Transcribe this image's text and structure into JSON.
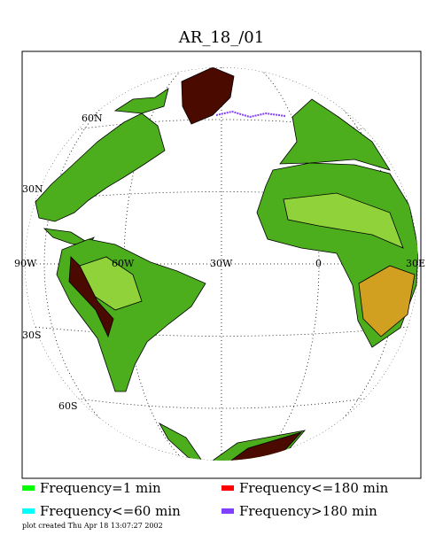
{
  "header": {
    "title": "AR_18_/01"
  },
  "map": {
    "grid_labels": [
      "60N",
      "30N",
      "90W",
      "60W",
      "30W",
      "0",
      "30E",
      "30S",
      "60S"
    ]
  },
  "legend": [
    {
      "name": "Frequency=1 min",
      "color": "#00ff00"
    },
    {
      "name": "Frequency<=180 min",
      "color": "#ff0000"
    },
    {
      "name": "Frequency<=60 min",
      "color": "#00ffff"
    },
    {
      "name": "Frequency>180 min",
      "color": "#8040ff"
    }
  ],
  "footer": "plot created Thu Apr 18 13:07:27 2002"
}
